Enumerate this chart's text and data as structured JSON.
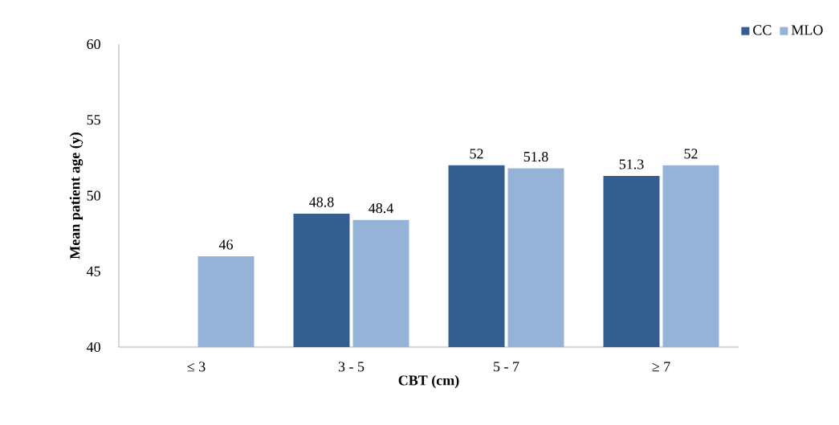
{
  "chart_data": {
    "type": "bar",
    "xlabel": "CBT (cm)",
    "ylabel": "Mean patient age (y)",
    "categories": [
      "≤ 3",
      "3 - 5",
      "5 - 7",
      "≥ 7"
    ],
    "series": [
      {
        "name": "CC",
        "color": "#345e8f",
        "values": [
          null,
          48.8,
          52,
          51.3
        ]
      },
      {
        "name": "MLO",
        "color": "#95b3d7",
        "values": [
          46,
          48.4,
          51.8,
          52
        ]
      }
    ],
    "ylim": [
      40,
      60
    ],
    "yticks": [
      40,
      45,
      50,
      55,
      60
    ],
    "data_labels": true,
    "legend": "top right",
    "grid": false
  }
}
